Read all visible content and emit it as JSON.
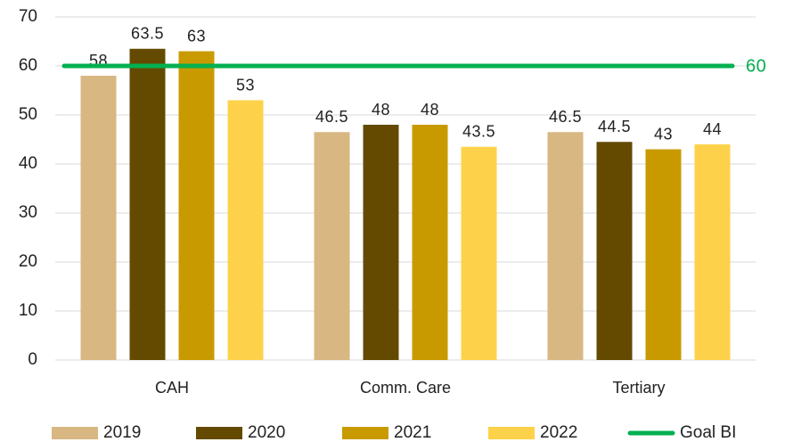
{
  "chart_data": {
    "type": "bar",
    "categories": [
      "CAH",
      "Comm. Care",
      "Tertiary"
    ],
    "series": [
      {
        "name": "2019",
        "color": "#d8b783",
        "values": [
          58,
          46.5,
          46.5
        ]
      },
      {
        "name": "2020",
        "color": "#634a00",
        "values": [
          63.5,
          48,
          44.5
        ]
      },
      {
        "name": "2021",
        "color": "#c99a00",
        "values": [
          63,
          48,
          43
        ]
      },
      {
        "name": "2022",
        "color": "#fdd24a",
        "values": [
          53,
          43.5,
          44
        ]
      }
    ],
    "goal": {
      "name": "Goal BI",
      "value": 60,
      "color": "#00b050"
    },
    "ylim": [
      0,
      70
    ],
    "yticks": [
      0,
      10,
      20,
      30,
      40,
      50,
      60,
      70
    ],
    "grid": true,
    "legend": "bottom"
  }
}
